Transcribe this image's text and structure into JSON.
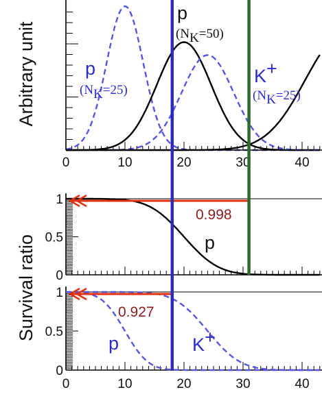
{
  "chart_data": [
    {
      "type": "line",
      "panel": "top",
      "ylabel": "Arbitrary unit",
      "xlim": [
        0,
        43
      ],
      "x_ticks": [
        "0",
        "10",
        "20",
        "30",
        "40"
      ],
      "series": [
        {
          "style": "dashed",
          "color": "#5555dd",
          "mean": 10,
          "sigma": 3.1,
          "amp": 1.0
        },
        {
          "style": "solid",
          "color": "#000000",
          "mean": 20,
          "sigma": 4.6,
          "amp": 0.75
        },
        {
          "style": "dashed",
          "color": "#5555dd",
          "mean": 24,
          "sigma": 4.4,
          "amp": 0.66
        },
        {
          "style": "solid",
          "color": "#000000",
          "mean": 47,
          "sigma": 6.5,
          "amp": 0.8
        }
      ],
      "cut_lines": [
        {
          "x": 18,
          "color": "#2b2bc0"
        },
        {
          "x": 31,
          "color": "#2f6b30"
        }
      ],
      "annotations": {
        "p_top": "p",
        "nk50": "=50)",
        "p_left": "p",
        "nk25_left": "=25)",
        "kplus": "K",
        "kplus_sup": "+",
        "nk25_right": "=25)",
        "n_open": "(N",
        "k_sub": "K"
      }
    },
    {
      "type": "line",
      "panel": "middle",
      "ylabel": "Survival ratio",
      "ylim": [
        0,
        1
      ],
      "y_ticks": [
        "0",
        "0.5",
        "1"
      ],
      "series": [
        {
          "name": "p",
          "style": "solid",
          "color": "#000000",
          "mean": 20,
          "sigma": 4.6
        }
      ],
      "survival_value": "0.998",
      "arrow_color": "#e03010",
      "arrow_at_x": 31,
      "label_p": "p"
    },
    {
      "type": "line",
      "panel": "bottom",
      "ylim": [
        0,
        1
      ],
      "y_ticks": [
        "0",
        "0.5",
        "1"
      ],
      "x_ticks": [
        "0",
        "10",
        "20",
        "30",
        "40"
      ],
      "series": [
        {
          "name": "p",
          "style": "dashed",
          "color": "#5555dd",
          "mean": 10,
          "sigma": 3.1
        },
        {
          "name": "K+",
          "style": "dashed",
          "color": "#5555dd",
          "mean": 24,
          "sigma": 4.4
        }
      ],
      "survival_value": "0.927",
      "arrow_color": "#e03010",
      "arrow_at_x": 18,
      "label_p": "p",
      "label_k": "K",
      "label_k_sup": "+"
    }
  ],
  "shared": {
    "ylabel": "Survival ratio"
  }
}
